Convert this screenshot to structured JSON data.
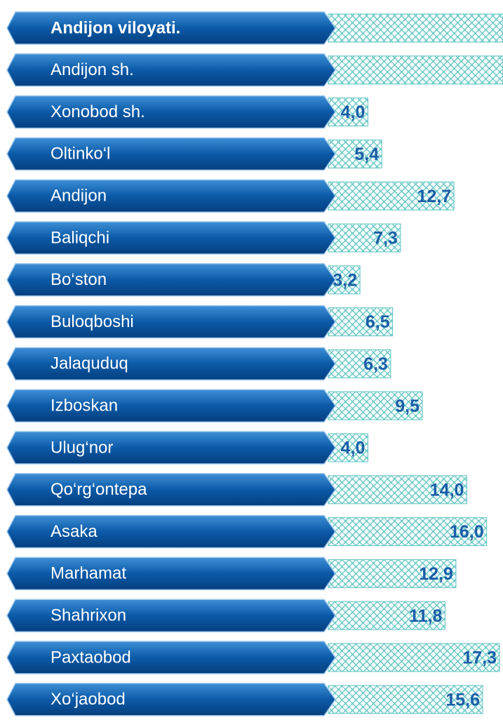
{
  "chart_data": {
    "type": "bar",
    "categories": [
      "Andijon viloyati.",
      "Andijon sh.",
      "Xonobod sh.",
      "Oltinko‘l",
      "Andijon",
      "Baliqchi",
      "Bo‘ston",
      "Buloqboshi",
      "Jalaquduq",
      "Izboskan",
      "Ulug‘nor",
      "Qo‘rg‘ontepa",
      "Asaka",
      "Marhamat",
      "Shahrixon",
      "Paxtaobod",
      "Xo‘jaobod"
    ],
    "values": [
      null,
      null,
      4.0,
      5.4,
      12.7,
      7.3,
      3.2,
      6.5,
      6.3,
      9.5,
      4.0,
      14.0,
      16.0,
      12.9,
      11.8,
      17.3,
      15.6
    ],
    "value_labels": [
      null,
      null,
      "4,0",
      "5,4",
      "12,7",
      "7,3",
      "3,2",
      "6,5",
      "6,3",
      "9,5",
      "4,0",
      "14,0",
      "16,0",
      "12,9",
      "11,8",
      "17,3",
      "15,6"
    ],
    "color": "#5fc4c0"
  }
}
